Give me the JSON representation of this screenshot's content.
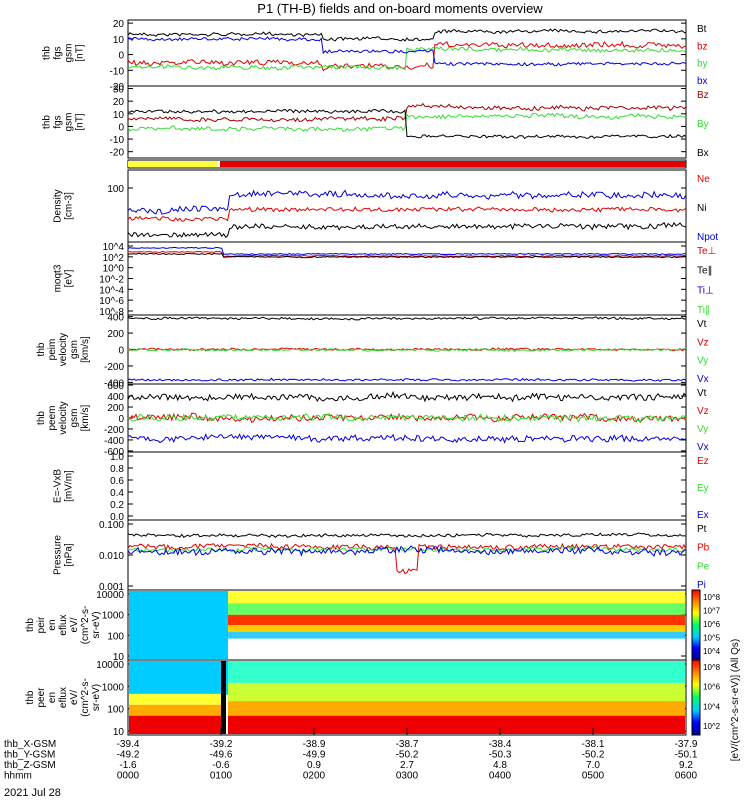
{
  "title": "P1 (TH-B) fields and on-board moments overview",
  "date_label": "2021 Jul 28",
  "colors": {
    "black": "#000000",
    "red": "#e00000",
    "green": "#33dd33",
    "blue": "#0000dd",
    "darkred": "#a00000",
    "yellow": "#ffff40"
  },
  "chart_data": [
    {
      "type": "line",
      "ylabel": [
        "thb",
        "fgs",
        "gsm",
        "[nT]"
      ],
      "yticks": [
        20,
        10,
        0,
        -10,
        -20
      ],
      "ylim": [
        -20,
        22
      ],
      "legend": [
        {
          "name": "Bt",
          "color": "black"
        },
        {
          "name": "bz",
          "color": "red"
        },
        {
          "name": "by",
          "color": "green"
        },
        {
          "name": "bx",
          "color": "blue"
        }
      ]
    },
    {
      "type": "line",
      "ylabel": [
        "thb",
        "fgs",
        "gsm",
        "[nT]"
      ],
      "yticks": [
        30,
        20,
        10,
        0,
        -10,
        -20
      ],
      "ylim": [
        -25,
        32
      ],
      "legend": [
        {
          "name": "Bz",
          "color": "darkred"
        },
        {
          "name": "By",
          "color": "green"
        },
        {
          "name": "Bx",
          "color": "black"
        }
      ]
    },
    {
      "type": "bar",
      "ylabel": [],
      "segments": [
        {
          "from": "0000",
          "to": "0045",
          "color": "yellow"
        },
        {
          "from": "0045",
          "to": "0600",
          "color": "red"
        }
      ]
    },
    {
      "type": "line",
      "ylabel": [
        "Density",
        "[cm-3]"
      ],
      "yticks": [
        100
      ],
      "ylog": true,
      "legend": [
        {
          "name": "Ne",
          "color": "red"
        },
        {
          "name": "Ni",
          "color": "black"
        },
        {
          "name": "Npot",
          "color": "blue"
        }
      ]
    },
    {
      "type": "line",
      "ylabel": [
        "moqt3",
        "[eV]"
      ],
      "yticks": [
        "10^4",
        "10^2",
        "10^0",
        "10^-2",
        "10^-4",
        "10^-6",
        "10^-8"
      ],
      "ylog": true,
      "legend": [
        {
          "name": "Te⊥",
          "color": "red"
        },
        {
          "name": "Te∥",
          "color": "black"
        },
        {
          "name": "Ti⊥",
          "color": "blue"
        },
        {
          "name": "Ti∥",
          "color": "green"
        }
      ]
    },
    {
      "type": "line",
      "ylabel": [
        "thb",
        "peim",
        "velocity",
        "gsm",
        "[km/s]"
      ],
      "yticks": [
        400,
        200,
        0,
        -200,
        -400
      ],
      "ylim": [
        -420,
        420
      ],
      "legend": [
        {
          "name": "Vt",
          "color": "black"
        },
        {
          "name": "Vz",
          "color": "red"
        },
        {
          "name": "Vy",
          "color": "green"
        },
        {
          "name": "Vx",
          "color": "blue"
        }
      ]
    },
    {
      "type": "line",
      "ylabel": [
        "thb",
        "peem",
        "velocity",
        "gsm",
        "[km/s]"
      ],
      "yticks": [
        600,
        400,
        200,
        0,
        -200,
        -400,
        -600
      ],
      "ylim": [
        -620,
        620
      ],
      "legend": [
        {
          "name": "Vt",
          "color": "black"
        },
        {
          "name": "Vz",
          "color": "red"
        },
        {
          "name": "Vy",
          "color": "green"
        },
        {
          "name": "Vx",
          "color": "blue"
        }
      ]
    },
    {
      "type": "line",
      "ylabel": [
        "E=-VxB",
        "[mV/m]"
      ],
      "yticks": [
        "1.0",
        "0.8",
        "0.6",
        "0.4",
        "0.2",
        "0.0"
      ],
      "ylim": [
        0,
        1
      ],
      "legend": [
        {
          "name": "Ez",
          "color": "red"
        },
        {
          "name": "Ey",
          "color": "green"
        },
        {
          "name": "Ex",
          "color": "blue"
        }
      ]
    },
    {
      "type": "line",
      "ylabel": [
        "Pressure",
        "[nPa]"
      ],
      "yticks": [
        "0.100",
        "0.010",
        "0.001"
      ],
      "ylog": true,
      "legend": [
        {
          "name": "Pt",
          "color": "black"
        },
        {
          "name": "Pb",
          "color": "red"
        },
        {
          "name": "Pe",
          "color": "green"
        },
        {
          "name": "Pi",
          "color": "blue"
        }
      ]
    },
    {
      "type": "heatmap",
      "ylabel": [
        "thb",
        "peir",
        "en",
        "eflux",
        "eV/",
        "(cm^2-s-",
        "sr-eV)"
      ],
      "yticks": [
        10000,
        1000,
        100,
        10
      ]
    },
    {
      "type": "heatmap",
      "ylabel": [
        "thb",
        "peer",
        "en",
        "eflux",
        "eV/",
        "(cm^2-s-",
        "sr-eV)"
      ],
      "yticks": [
        10000,
        1000,
        100,
        10
      ]
    }
  ],
  "colorbars": [
    {
      "ticks": [
        "10^8",
        "10^7",
        "10^6",
        "10^5",
        "10^4"
      ],
      "label": "[eV/(cm^2-s-sr-eV)] (All Qs)"
    },
    {
      "ticks": [
        "10^8",
        "10^6",
        "10^4",
        "10^2"
      ],
      "label": "[eV/(cm^2-s-sr-eV)] (All Qs)"
    }
  ],
  "xaxis": {
    "rows": [
      {
        "label": "thb_X-GSM",
        "values": [
          "-39.4",
          "-39.2",
          "-38.9",
          "-38.7",
          "-38.4",
          "-38.1",
          "-37.9"
        ]
      },
      {
        "label": "thb_Y-GSM",
        "values": [
          "-49.2",
          "-49.6",
          "-49.9",
          "-50.2",
          "-50.3",
          "-50.2",
          "-50.1"
        ]
      },
      {
        "label": "thb_Z-GSM",
        "values": [
          "-1.6",
          "-0.6",
          "0.9",
          "2.7",
          "4.8",
          "7.0",
          "9.2"
        ]
      },
      {
        "label": "hhmm",
        "values": [
          "0000",
          "0100",
          "0200",
          "0300",
          "0400",
          "0500",
          "0600"
        ]
      }
    ]
  }
}
